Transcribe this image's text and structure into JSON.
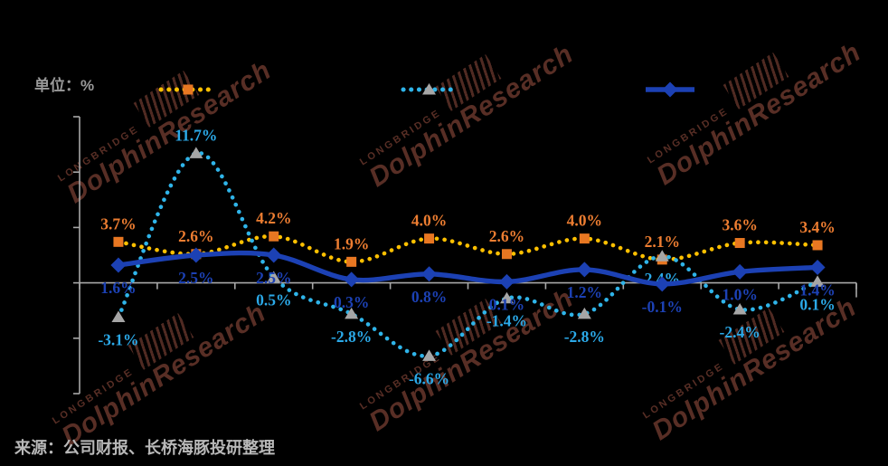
{
  "unit_label": "单位：%",
  "source_note": "来源：公司财报、长桥海豚投研整理",
  "watermark": {
    "brand_small": "LONGBRIDGE",
    "brand_large": "DolphinResearch"
  },
  "chart_data": {
    "type": "line",
    "ylim": [
      -10,
      15
    ],
    "y_tick_step": 5,
    "axis_color": "#A8A8A8",
    "y_tick_labels_visible": false,
    "x_tick_labels_visible": false,
    "legend_labels_visible": false,
    "legend_position": "top",
    "grid": false,
    "series": [
      {
        "id": "orange-dotted",
        "style": "dotted",
        "line_color": "#FFC000",
        "marker": "square",
        "marker_color": "#E87722",
        "label_color": "#ED7D31",
        "label_side": "above",
        "values": [
          3.7,
          2.6,
          4.2,
          1.9,
          4.0,
          2.6,
          4.0,
          2.1,
          3.6,
          3.4
        ]
      },
      {
        "id": "cyan-dotted",
        "style": "dotted",
        "line_color": "#2FB4E9",
        "marker": "triangle",
        "marker_color": "#A6A6A6",
        "label_color": "#2BA9E8",
        "label_side": "below",
        "values": [
          -3.1,
          11.7,
          0.5,
          -2.8,
          -6.6,
          -1.4,
          -2.8,
          2.4,
          -2.4,
          0.1
        ]
      },
      {
        "id": "blue-solid",
        "style": "solid",
        "line_color": "#1C41B4",
        "marker": "diamond",
        "marker_color": "#1C41B4",
        "label_color": "#1C41B4",
        "label_side": "below",
        "values": [
          1.6,
          2.5,
          2.5,
          0.3,
          0.8,
          0.1,
          1.2,
          -0.1,
          1.0,
          1.4
        ]
      }
    ]
  }
}
